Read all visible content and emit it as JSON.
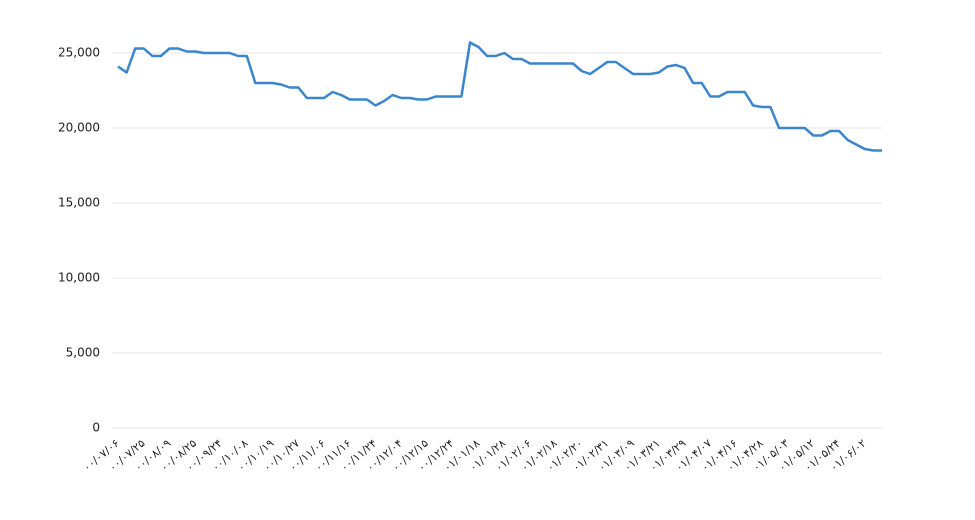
{
  "chart_data": {
    "type": "line",
    "categories": [
      "۰۰/۰۷/۰۶",
      null,
      null,
      "۰۰/۰۷/۲۵",
      null,
      null,
      "۰۰/۰۸/۰۹",
      null,
      null,
      "۰۰/۰۸/۲۵",
      null,
      null,
      "۰۰/۰۹/۲۴",
      null,
      null,
      "۰۰/۱۰/۰۸",
      null,
      null,
      "۰۰/۱۰/۱۹",
      null,
      null,
      "۰۰/۱۰/۲۷",
      null,
      null,
      "۰۰/۱۱/۰۶",
      null,
      null,
      "۰۰/۱۱/۱۶",
      null,
      null,
      "۰۰/۱۱/۲۴",
      null,
      null,
      "۰۰/۱۲/۰۴",
      null,
      null,
      "۰۰/۱۲/۱۵",
      null,
      null,
      "۰۰/۱۲/۲۴",
      null,
      null,
      "۰۱/۰۱/۱۸",
      null,
      null,
      "۰۱/۰۱/۲۸",
      null,
      null,
      "۰۱/۰۲/۰۶",
      null,
      null,
      "۰۱/۰۲/۱۸",
      null,
      null,
      "۰۱/۰۲/۲۰",
      null,
      null,
      "۰۱/۰۲/۳۱",
      null,
      null,
      "۰۱/۰۳/۰۹",
      null,
      null,
      "۰۱/۰۳/۲۱",
      null,
      null,
      "۰۱/۰۳/۲۹",
      null,
      null,
      "۰۱/۰۴/۰۷",
      null,
      null,
      "۰۱/۰۴/۱۶",
      null,
      null,
      "۰۱/۰۴/۲۸",
      null,
      null,
      "۰۱/۰۵/۰۳",
      null,
      null,
      "۰۱/۰۵/۱۲",
      null,
      null,
      "۰۱/۰۵/۲۴",
      null,
      null,
      "۰۱/۰۶/۰۲",
      null,
      null
    ],
    "values": [
      24100,
      23700,
      25300,
      25300,
      24800,
      24800,
      25300,
      25300,
      25100,
      25100,
      25000,
      25000,
      25000,
      25000,
      24800,
      24800,
      23000,
      23000,
      23000,
      22900,
      22700,
      22700,
      22000,
      22000,
      22000,
      22400,
      22200,
      21900,
      21900,
      21900,
      21500,
      21800,
      22200,
      22000,
      22000,
      21900,
      21900,
      22100,
      22100,
      22100,
      22100,
      25700,
      25400,
      24800,
      24800,
      25000,
      24600,
      24600,
      24300,
      24300,
      24300,
      24300,
      24300,
      24300,
      23800,
      23600,
      24000,
      24400,
      24400,
      24000,
      23600,
      23600,
      23600,
      23700,
      24100,
      24200,
      24000,
      23000,
      23000,
      22100,
      22100,
      22400,
      22400,
      22400,
      21500,
      21400,
      21400,
      20000,
      20000,
      20000,
      20000,
      19500,
      19500,
      19800,
      19800,
      19200,
      18900,
      18600,
      18500,
      18500
    ],
    "color": "#3a86cc",
    "ylim": [
      0,
      27000
    ],
    "yticks": [
      0,
      {
        "value": 5000,
        "label": "5,000"
      },
      {
        "value": 10000,
        "label": "10,000"
      },
      {
        "value": 15000,
        "label": "15,000"
      },
      {
        "value": 20000,
        "label": "20,000"
      },
      {
        "value": 25000,
        "label": "25,000"
      }
    ],
    "grid": true
  }
}
